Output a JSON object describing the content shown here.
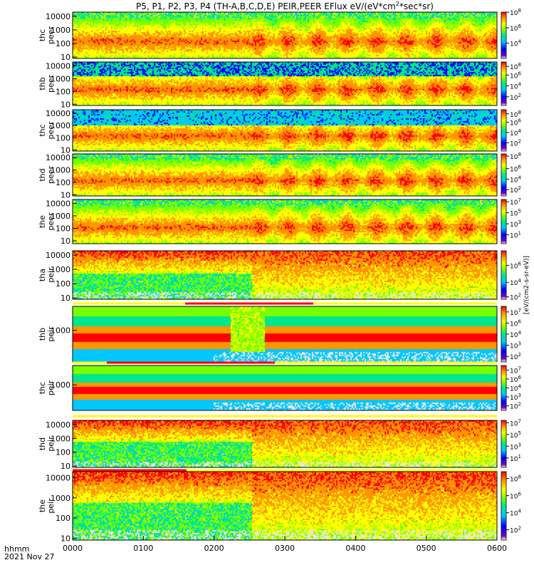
{
  "chart_data": {
    "type": "heatmap",
    "title": "P5, P1, P2, P3, P4 (TH-A,B,C,D,E) PEIR,PEER EFlux eV/(eV*cm^2*sec*sr)",
    "title_parts": {
      "before": "P5, P1, P2, P3, P4 (TH-A,B,C,D,E) PEIR,PEER EFlux eV/(eV*cm",
      "sup": "2",
      "after": "*sec*sr)"
    },
    "xlabel": "hhmm",
    "date": "2021 Nov 27",
    "x_range": [
      0,
      360
    ],
    "x_ticks": [
      {
        "label": "0000",
        "minutes": 0
      },
      {
        "label": "0100",
        "minutes": 60
      },
      {
        "label": "0200",
        "minutes": 120
      },
      {
        "label": "0300",
        "minutes": 180
      },
      {
        "label": "0400",
        "minutes": 240
      },
      {
        "label": "0500",
        "minutes": 300
      },
      {
        "label": "0600",
        "minutes": 360
      }
    ],
    "y_scale": "log",
    "colorbar_label": "[eV/(cm2-s-sr-eV)]",
    "colorscale": [
      "#e6e6e6",
      "#7a00c8",
      "#0000ff",
      "#00c8ff",
      "#00e68c",
      "#78ff00",
      "#ffff00",
      "#ff9600",
      "#ff0000"
    ],
    "panels": [
      {
        "name": "thc peer",
        "line1": "thc",
        "line2": "peer",
        "ylim": [
          8,
          20000
        ],
        "yticks": [
          10,
          100,
          1000,
          10000
        ],
        "ytick_labels": [
          "10",
          "100",
          "1000",
          "10000"
        ],
        "cbar_ticks": [
          {
            "value": 1,
            "label": "10",
            "exp": "8"
          },
          {
            "value": 0.66,
            "label": "10",
            "exp": "6"
          },
          {
            "value": 0.33,
            "label": "10",
            "exp": "4"
          }
        ]
      },
      {
        "name": "thb peer",
        "line1": "thb",
        "line2": "peer",
        "ylim": [
          8,
          20000
        ],
        "yticks": [
          10,
          100,
          1000,
          10000
        ],
        "ytick_labels": [
          "10",
          "100",
          "1000",
          "10000"
        ],
        "cbar_ticks": [
          {
            "value": 0.9,
            "label": "10",
            "exp": "8"
          },
          {
            "value": 0.7,
            "label": "10",
            "exp": "6"
          },
          {
            "value": 0.45,
            "label": "10",
            "exp": "4"
          },
          {
            "value": 0.2,
            "label": "10",
            "exp": "2"
          }
        ]
      },
      {
        "name": "thc peer",
        "line1": "thc",
        "line2": "peer",
        "ylim": [
          8,
          20000
        ],
        "yticks": [
          10,
          100,
          1000,
          10000
        ],
        "ytick_labels": [
          "10",
          "100",
          "1000",
          "10000"
        ],
        "cbar_ticks": [
          {
            "value": 0.9,
            "label": "10",
            "exp": "8"
          },
          {
            "value": 0.7,
            "label": "10",
            "exp": "6"
          },
          {
            "value": 0.45,
            "label": "10",
            "exp": "4"
          },
          {
            "value": 0.2,
            "label": "10",
            "exp": "2"
          }
        ]
      },
      {
        "name": "thd peer",
        "line1": "thd",
        "line2": "peer",
        "ylim": [
          8,
          20000
        ],
        "yticks": [
          10,
          100,
          1000,
          10000
        ],
        "ytick_labels": [
          "10",
          "100",
          "1000",
          "10000"
        ],
        "cbar_ticks": [
          {
            "value": 0.95,
            "label": "10",
            "exp": "8"
          },
          {
            "value": 0.65,
            "label": "10",
            "exp": "6"
          },
          {
            "value": 0.4,
            "label": "10",
            "exp": "4"
          },
          {
            "value": 0.15,
            "label": "10",
            "exp": "2"
          }
        ]
      },
      {
        "name": "the peer",
        "line1": "the",
        "line2": "peer",
        "ylim": [
          6,
          20000
        ],
        "yticks": [
          10,
          100,
          1000,
          10000
        ],
        "ytick_labels": [
          "10",
          "100",
          "1000",
          "10000"
        ],
        "cbar_ticks": [
          {
            "value": 0.95,
            "label": "10",
            "exp": "7"
          },
          {
            "value": 0.7,
            "label": "10",
            "exp": "5"
          },
          {
            "value": 0.45,
            "label": "10",
            "exp": "3"
          },
          {
            "value": 0.2,
            "label": "10",
            "exp": "1"
          }
        ]
      },
      {
        "name": "tha peir",
        "line1": "tha",
        "line2": "peir",
        "ylim": [
          8,
          20000
        ],
        "yticks": [
          10,
          100,
          1000,
          10000
        ],
        "ytick_labels": [
          "10",
          "100",
          "1000",
          "10000"
        ],
        "cbar_ticks": [
          {
            "value": 0.7,
            "label": "10",
            "exp": "6"
          },
          {
            "value": 0.35,
            "label": "10",
            "exp": "4"
          },
          {
            "value": 0.05,
            "label": "10",
            "exp": "2"
          }
        ]
      },
      {
        "name": "thb peir",
        "line1": "thb",
        "line2": "peir",
        "ylim": [
          300,
          2500
        ],
        "yticks": [
          1000
        ],
        "ytick_labels": [
          "1000"
        ],
        "cbar_ticks": [
          {
            "value": 0.9,
            "label": "10",
            "exp": "7"
          },
          {
            "value": 0.7,
            "label": "10",
            "exp": "6"
          },
          {
            "value": 0.5,
            "label": "10",
            "exp": "4"
          },
          {
            "value": 0.3,
            "label": "10",
            "exp": "3"
          },
          {
            "value": 0.1,
            "label": "10",
            "exp": "2"
          }
        ]
      },
      {
        "name": "thc peir",
        "line1": "thc",
        "line2": "peir",
        "ylim": [
          300,
          2500
        ],
        "yticks": [
          1000
        ],
        "ytick_labels": [
          "1000"
        ],
        "cbar_ticks": [
          {
            "value": 0.9,
            "label": "10",
            "exp": "7"
          },
          {
            "value": 0.7,
            "label": "10",
            "exp": "6"
          },
          {
            "value": 0.5,
            "label": "10",
            "exp": "4"
          },
          {
            "value": 0.3,
            "label": "10",
            "exp": "3"
          },
          {
            "value": 0.1,
            "label": "10",
            "exp": "2"
          }
        ]
      },
      {
        "name": "thd peir",
        "line1": "thd",
        "line2": "peir",
        "ylim": [
          8,
          20000
        ],
        "yticks": [
          10,
          100,
          1000,
          10000
        ],
        "ytick_labels": [
          "10",
          "100",
          "1000",
          "10000"
        ],
        "cbar_ticks": [
          {
            "value": 0.95,
            "label": "10",
            "exp": "7"
          },
          {
            "value": 0.7,
            "label": "10",
            "exp": "5"
          },
          {
            "value": 0.45,
            "label": "10",
            "exp": "3"
          },
          {
            "value": 0.2,
            "label": "10",
            "exp": "1"
          }
        ]
      },
      {
        "name": "the peir",
        "line1": "the",
        "line2": "peir",
        "ylim": [
          8,
          20000
        ],
        "yticks": [
          10,
          100,
          1000,
          10000
        ],
        "ytick_labels": [
          "10",
          "100",
          "1000",
          "10000"
        ],
        "cbar_ticks": [
          {
            "value": 0.9,
            "label": "10",
            "exp": "8"
          },
          {
            "value": 0.65,
            "label": "10",
            "exp": "6"
          },
          {
            "value": 0.4,
            "label": "10",
            "exp": "4"
          },
          {
            "value": 0.15,
            "label": "10",
            "exp": "2"
          }
        ]
      }
    ]
  }
}
